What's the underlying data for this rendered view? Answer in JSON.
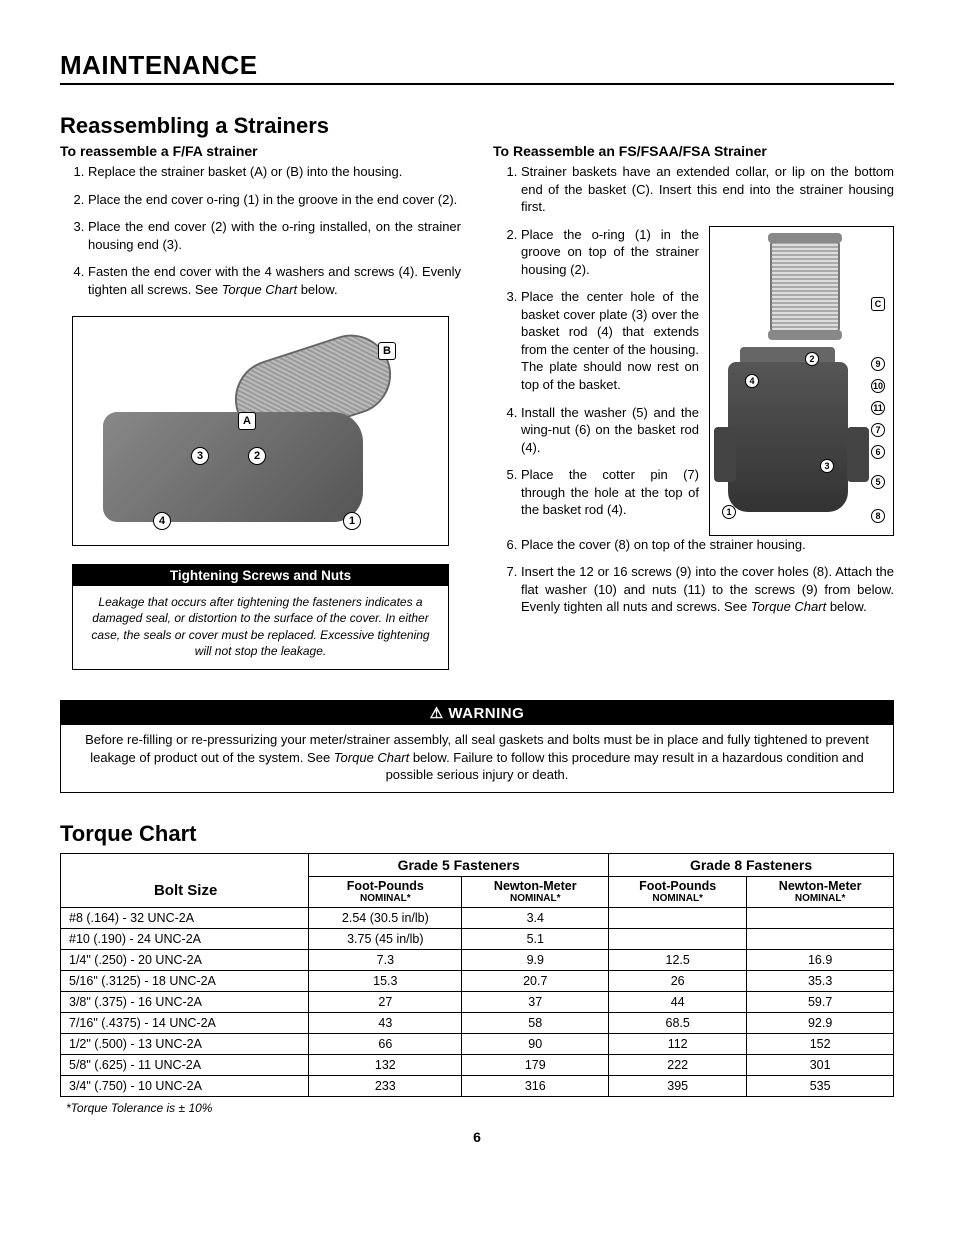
{
  "page": {
    "title": "MAINTENANCE",
    "number": "6"
  },
  "reassembling": {
    "title": "Reassembling a Strainers",
    "left": {
      "subtitle": "To reassemble a F/FA strainer",
      "steps": [
        "Replace the strainer basket (A) or (B) into the housing.",
        "Place the end cover o-ring (1) in the groove in the end cover (2).",
        "Place the end cover (2) with the o-ring installed, on the strainer housing end (3).",
        "Fasten the end cover with the 4 washers and screws (4). Evenly tighten all screws. See "
      ],
      "step4_italic": "Torque Chart",
      "step4_tail": " below."
    },
    "right": {
      "subtitle": "To Reassemble an FS/FSAA/FSA Strainer",
      "steps": [
        "Strainer baskets have an extended collar, or lip on the bottom end of the basket (C). Insert this end into the strainer housing first.",
        "Place the o-ring (1) in the groove on top of the strainer housing (2).",
        "Place the center hole of the basket cover plate (3) over the basket rod (4) that extends from the center of the housing. The plate should now rest on top of the basket.",
        "Install the washer (5) and the wing-nut (6) on the basket rod (4).",
        "Place the cotter pin (7) through the hole at the top of the basket rod (4).",
        "Place the cover (8) on top of the strainer housing.",
        "Insert the 12 or 16 screws (9) into the cover holes (8). Attach the flat washer (10) and nuts (11) to the screws (9) from below. Evenly tighten all nuts and screws. See "
      ],
      "step7_italic": "Torque Chart",
      "step7_tail": " below."
    },
    "tightening": {
      "header": "Tightening Screws and Nuts",
      "body": "Leakage that occurs after tightening the fasteners indicates a damaged seal, or distortion to the surface of the cover. In either case, the seals or cover must be replaced. Excessive tightening will not stop the leakage."
    },
    "fig1_callouts": {
      "A": "A",
      "B": "B",
      "c1": "1",
      "c2": "2",
      "c3": "3",
      "c4": "4"
    },
    "fig2_callouts": {
      "C": "C",
      "c1": "1",
      "c2": "2",
      "c3": "3",
      "c4": "4",
      "c5": "5",
      "c6": "6",
      "c7": "7",
      "c8": "8",
      "c9": "9",
      "c10": "10",
      "c11": "11"
    }
  },
  "warning": {
    "header": "WARNING",
    "body_pre": "Before re-filling or re-pressurizing your meter/strainer assembly, all seal gaskets and bolts must be in place and fully tightened to prevent leakage of product out of the system. See ",
    "body_italic": "Torque Chart",
    "body_post": " below. Failure to follow this procedure may result in a hazardous condition and possible serious injury or death."
  },
  "torque": {
    "title": "Torque Chart",
    "headers": {
      "bolt": "Bolt Size",
      "g5": "Grade 5 Fasteners",
      "g8": "Grade 8 Fasteners",
      "fp": "Foot-Pounds",
      "nm": "Newton-Meter",
      "nominal": "NOMINAL*"
    },
    "rows": [
      {
        "size": "#8 (.164) - 32 UNC-2A",
        "g5fp": "2.54 (30.5 in/lb)",
        "g5nm": "3.4",
        "g8fp": "",
        "g8nm": ""
      },
      {
        "size": "#10 (.190) - 24 UNC-2A",
        "g5fp": "3.75 (45 in/lb)",
        "g5nm": "5.1",
        "g8fp": "",
        "g8nm": ""
      },
      {
        "size": "1/4\" (.250) - 20 UNC-2A",
        "g5fp": "7.3",
        "g5nm": "9.9",
        "g8fp": "12.5",
        "g8nm": "16.9"
      },
      {
        "size": "5/16\" (.3125) - 18 UNC-2A",
        "g5fp": "15.3",
        "g5nm": "20.7",
        "g8fp": "26",
        "g8nm": "35.3"
      },
      {
        "size": "3/8\" (.375) - 16 UNC-2A",
        "g5fp": "27",
        "g5nm": "37",
        "g8fp": "44",
        "g8nm": "59.7"
      },
      {
        "size": "7/16\" (.4375) - 14 UNC-2A",
        "g5fp": "43",
        "g5nm": "58",
        "g8fp": "68.5",
        "g8nm": "92.9"
      },
      {
        "size": "1/2\" (.500) - 13 UNC-2A",
        "g5fp": "66",
        "g5nm": "90",
        "g8fp": "112",
        "g8nm": "152"
      },
      {
        "size": "5/8\" (.625) - 11 UNC-2A",
        "g5fp": "132",
        "g5nm": "179",
        "g8fp": "222",
        "g8nm": "301"
      },
      {
        "size": "3/4\" (.750) - 10 UNC-2A",
        "g5fp": "233",
        "g5nm": "316",
        "g8fp": "395",
        "g8nm": "535"
      }
    ],
    "footnote": "*Torque Tolerance is ± 10%"
  }
}
